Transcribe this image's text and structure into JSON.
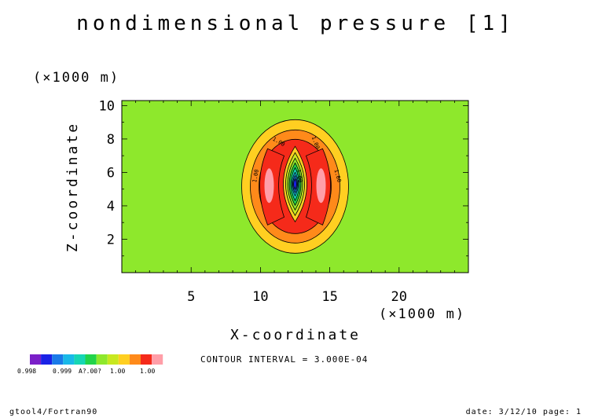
{
  "chart_data": {
    "type": "contour",
    "title": "nondimensional pressure [1]",
    "xlabel": "X-coordinate",
    "ylabel": "Z-coordinate",
    "x_unit": "(×1000 m)",
    "y_unit": "(×1000 m)",
    "xlim": [
      0,
      25
    ],
    "ylim": [
      0,
      10.3
    ],
    "x_ticks": [
      5,
      10,
      15,
      20
    ],
    "y_ticks": [
      2,
      4,
      6,
      8,
      10
    ],
    "background_color": "#8ee82c",
    "contour_interval_text": "CONTOUR INTERVAL = 3.000E-04",
    "contour_labels": [
      "1.00",
      "1.00",
      "1.00",
      "1.00",
      "1.00"
    ],
    "colorbar": {
      "colors": [
        "#7a1fc8",
        "#1a22e6",
        "#1a7ae8",
        "#19b9e8",
        "#16d6b4",
        "#22d44a",
        "#8ee82c",
        "#c8e820",
        "#ffcf21",
        "#ff8a1a",
        "#f52a1a",
        "#ff9ea8"
      ],
      "labels": [
        "0.998",
        "0.999",
        "A?.00?",
        "1.00",
        "1.00"
      ]
    }
  },
  "footer": {
    "left": "gtool4/Fortran90",
    "right": "date: 3/12/10 page: 1"
  }
}
